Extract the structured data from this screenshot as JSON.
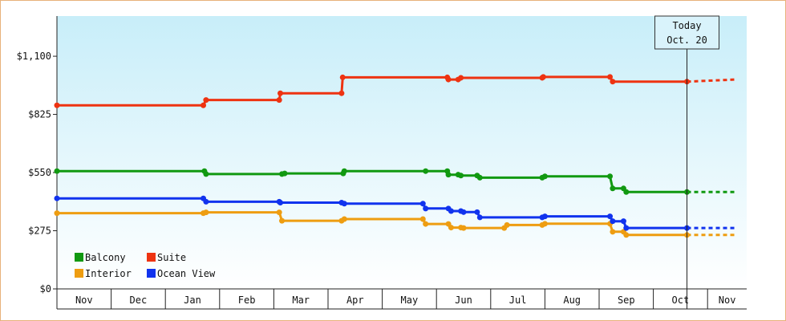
{
  "chart_data": {
    "type": "line",
    "step": true,
    "x_unit": "month index (0 = Nov 1 of prior year)",
    "y_tick_labels": [
      "$0",
      "$275",
      "$550",
      "$825",
      "$1,100"
    ],
    "y_ticks": [
      0,
      275,
      550,
      825,
      1100
    ],
    "ylim": [
      0,
      1290
    ],
    "x_tick_labels": [
      "Nov",
      "Dec",
      "Jan",
      "Feb",
      "Mar",
      "Apr",
      "May",
      "Jun",
      "Jul",
      "Aug",
      "Sep",
      "Oct",
      "Nov"
    ],
    "xlim": [
      0,
      12.53
    ],
    "grid": false,
    "background_gradient": [
      "#c8eef9",
      "#ffffff"
    ],
    "legend_position": "bottom-left",
    "today": {
      "line1": "Today",
      "line2": "Oct. 20",
      "x": 11.62
    },
    "projection_end_x": 12.53,
    "series": [
      {
        "name": "Balcony",
        "color": "#119911",
        "points": [
          [
            0,
            557
          ],
          [
            2.72,
            557
          ],
          [
            2.75,
            543
          ],
          [
            4.15,
            543
          ],
          [
            4.2,
            546
          ],
          [
            5.28,
            546
          ],
          [
            5.3,
            557
          ],
          [
            6.8,
            557
          ],
          [
            7.2,
            557
          ],
          [
            7.22,
            540
          ],
          [
            7.4,
            540
          ],
          [
            7.45,
            536
          ],
          [
            7.75,
            536
          ],
          [
            7.8,
            526
          ],
          [
            8.95,
            526
          ],
          [
            9,
            532
          ],
          [
            10.2,
            532
          ],
          [
            10.25,
            475
          ],
          [
            10.45,
            475
          ],
          [
            10.5,
            458
          ],
          [
            11.62,
            458
          ]
        ],
        "projection_end_y": 458
      },
      {
        "name": "Suite",
        "color": "#ee3311",
        "points": [
          [
            0,
            868
          ],
          [
            2.7,
            868
          ],
          [
            2.75,
            893
          ],
          [
            4.1,
            893
          ],
          [
            4.12,
            925
          ],
          [
            5.25,
            925
          ],
          [
            5.27,
            1000
          ],
          [
            7.2,
            1000
          ],
          [
            7.22,
            990
          ],
          [
            7.4,
            990
          ],
          [
            7.45,
            998
          ],
          [
            8.95,
            998
          ],
          [
            8.97,
            1002
          ],
          [
            10.2,
            1002
          ],
          [
            10.25,
            980
          ],
          [
            11.62,
            980
          ]
        ],
        "projection_end_y": 990
      },
      {
        "name": "Interior",
        "color": "#ee9d11",
        "points": [
          [
            0,
            358
          ],
          [
            2.7,
            358
          ],
          [
            2.75,
            362
          ],
          [
            4.1,
            362
          ],
          [
            4.15,
            322
          ],
          [
            5.25,
            322
          ],
          [
            5.3,
            330
          ],
          [
            6.75,
            330
          ],
          [
            6.8,
            307
          ],
          [
            7.22,
            307
          ],
          [
            7.27,
            290
          ],
          [
            7.45,
            290
          ],
          [
            7.5,
            288
          ],
          [
            8.25,
            288
          ],
          [
            8.3,
            302
          ],
          [
            8.95,
            302
          ],
          [
            9,
            308
          ],
          [
            10.2,
            308
          ],
          [
            10.25,
            270
          ],
          [
            10.45,
            270
          ],
          [
            10.5,
            255
          ],
          [
            11.62,
            255
          ]
        ],
        "projection_end_y": 255
      },
      {
        "name": "Ocean View",
        "color": "#1133ee",
        "points": [
          [
            0,
            428
          ],
          [
            2.7,
            428
          ],
          [
            2.75,
            412
          ],
          [
            4.1,
            412
          ],
          [
            4.12,
            408
          ],
          [
            5.25,
            408
          ],
          [
            5.3,
            403
          ],
          [
            6.75,
            403
          ],
          [
            6.8,
            380
          ],
          [
            7.22,
            380
          ],
          [
            7.27,
            368
          ],
          [
            7.45,
            368
          ],
          [
            7.5,
            363
          ],
          [
            7.75,
            363
          ],
          [
            7.8,
            338
          ],
          [
            8.95,
            338
          ],
          [
            9,
            343
          ],
          [
            10.2,
            343
          ],
          [
            10.25,
            320
          ],
          [
            10.45,
            320
          ],
          [
            10.5,
            288
          ],
          [
            11.62,
            288
          ]
        ],
        "projection_end_y": 288
      }
    ]
  }
}
